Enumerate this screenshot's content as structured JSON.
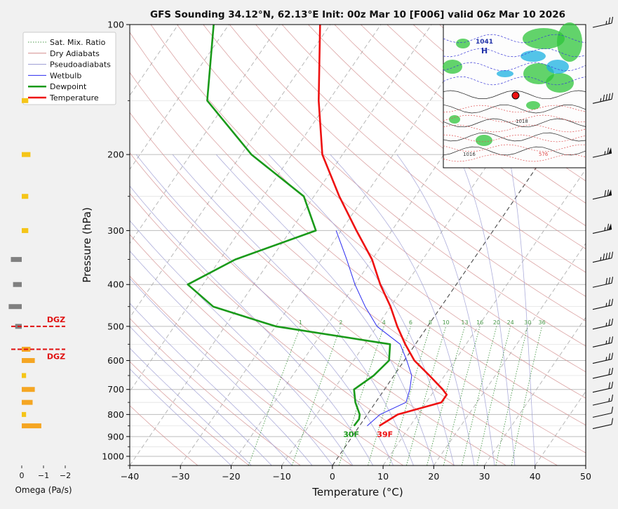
{
  "chart_data": {
    "type": "line",
    "title": "GFS Sounding 34.12°N, 62.13°E Init: 00z Mar 10 [F006] valid 06z Mar 10 2026",
    "xlabel": "Temperature (°C)",
    "ylabel": "Pressure (hPa)",
    "xlim": [
      -40,
      50
    ],
    "ylim": [
      1050,
      100
    ],
    "x_ticks": [
      -40,
      -30,
      -20,
      -10,
      0,
      10,
      20,
      30,
      40,
      50
    ],
    "y_ticks": [
      100,
      200,
      300,
      400,
      500,
      600,
      700,
      800,
      900,
      1000
    ],
    "mixing_ratio_labels": [
      "1",
      "2",
      "4",
      "6",
      "8",
      "10",
      "13",
      "16",
      "20",
      "24",
      "30",
      "36"
    ],
    "legend": [
      {
        "label": "Sat. Mix. Ratio",
        "color": "#4a9a4a",
        "style": "dotted"
      },
      {
        "label": "Dry Adiabats",
        "color": "#d28c8c",
        "style": "solid"
      },
      {
        "label": "Pseudoadiabats",
        "color": "#9a9ad2",
        "style": "solid"
      },
      {
        "label": "Wetbulb",
        "color": "#2a2af0",
        "style": "solid"
      },
      {
        "label": "Dewpoint",
        "color": "#1a9a1a",
        "style": "solid"
      },
      {
        "label": "Temperature",
        "color": "#ee1111",
        "style": "solid"
      }
    ],
    "series": [
      {
        "name": "Temperature",
        "color": "#ee1111",
        "width": 2.6,
        "points": [
          [
            850,
            3.9
          ],
          [
            800,
            6.0
          ],
          [
            750,
            13.0
          ],
          [
            720,
            13.0
          ],
          [
            700,
            11.5
          ],
          [
            650,
            7.0
          ],
          [
            600,
            2.0
          ],
          [
            550,
            -2.0
          ],
          [
            500,
            -6.0
          ],
          [
            450,
            -10.0
          ],
          [
            400,
            -15.0
          ],
          [
            350,
            -20.0
          ],
          [
            300,
            -27.0
          ],
          [
            250,
            -35.0
          ],
          [
            200,
            -44.0
          ],
          [
            150,
            -52.0
          ],
          [
            100,
            -62.0
          ]
        ]
      },
      {
        "name": "Dewpoint",
        "color": "#1a9a1a",
        "width": 2.6,
        "points": [
          [
            850,
            -1.1
          ],
          [
            820,
            -1.0
          ],
          [
            800,
            -1.5
          ],
          [
            750,
            -4.0
          ],
          [
            700,
            -6.0
          ],
          [
            650,
            -4.0
          ],
          [
            600,
            -3.0
          ],
          [
            550,
            -5.0
          ],
          [
            500,
            -30.0
          ],
          [
            450,
            -45.0
          ],
          [
            400,
            -53.0
          ],
          [
            350,
            -47.0
          ],
          [
            300,
            -35.0
          ],
          [
            250,
            -42.0
          ],
          [
            200,
            -58.0
          ],
          [
            150,
            -74.0
          ],
          [
            100,
            -83.0
          ]
        ]
      },
      {
        "name": "Wetbulb",
        "color": "#2a2af0",
        "width": 1.0,
        "points": [
          [
            850,
            1.5
          ],
          [
            800,
            2.5
          ],
          [
            750,
            6.0
          ],
          [
            700,
            5.0
          ],
          [
            650,
            3.5
          ],
          [
            600,
            0.5
          ],
          [
            550,
            -3.0
          ],
          [
            500,
            -10.0
          ],
          [
            450,
            -15.0
          ],
          [
            400,
            -20.0
          ],
          [
            350,
            -25.0
          ],
          [
            300,
            -31.0
          ]
        ]
      }
    ],
    "surface_labels": [
      {
        "text": "30F",
        "color": "#1a9a1a",
        "temp": -1.1,
        "pressure": 850
      },
      {
        "text": "39F",
        "color": "#ee1111",
        "temp": 3.9,
        "pressure": 850
      }
    ],
    "omega_axis": {
      "label": "Omega (Pa/s)",
      "ticks": [
        "0",
        "−1",
        "−2"
      ]
    },
    "dgz_label": "DGZ",
    "dgz_levels": [
      500,
      565
    ],
    "omega_bars": [
      {
        "pressure": 150,
        "value": -0.3,
        "color": "#f5c518"
      },
      {
        "pressure": 200,
        "value": -0.4,
        "color": "#f5c518"
      },
      {
        "pressure": 250,
        "value": -0.3,
        "color": "#f5c518"
      },
      {
        "pressure": 300,
        "value": -0.3,
        "color": "#f5c518"
      },
      {
        "pressure": 350,
        "value": 0.5,
        "color": "#808080"
      },
      {
        "pressure": 400,
        "value": 0.4,
        "color": "#808080"
      },
      {
        "pressure": 450,
        "value": 0.6,
        "color": "#808080"
      },
      {
        "pressure": 500,
        "value": 0.3,
        "color": "#808080"
      },
      {
        "pressure": 565,
        "value": -0.4,
        "color": "#f5a623"
      },
      {
        "pressure": 600,
        "value": -0.6,
        "color": "#f5a623"
      },
      {
        "pressure": 650,
        "value": -0.2,
        "color": "#f5c518"
      },
      {
        "pressure": 700,
        "value": -0.6,
        "color": "#f5a623"
      },
      {
        "pressure": 750,
        "value": -0.5,
        "color": "#f5a623"
      },
      {
        "pressure": 800,
        "value": -0.2,
        "color": "#f5c518"
      },
      {
        "pressure": 850,
        "value": -0.9,
        "color": "#f5a623"
      }
    ],
    "wind_barbs": [
      {
        "pressure": 100,
        "speed_kt": 25
      },
      {
        "pressure": 150,
        "speed_kt": 45
      },
      {
        "pressure": 200,
        "speed_kt": 65
      },
      {
        "pressure": 250,
        "speed_kt": 70
      },
      {
        "pressure": 300,
        "speed_kt": 65
      },
      {
        "pressure": 350,
        "speed_kt": 45
      },
      {
        "pressure": 400,
        "speed_kt": 30
      },
      {
        "pressure": 450,
        "speed_kt": 25
      },
      {
        "pressure": 500,
        "speed_kt": 25
      },
      {
        "pressure": 550,
        "speed_kt": 25
      },
      {
        "pressure": 600,
        "speed_kt": 25
      },
      {
        "pressure": 650,
        "speed_kt": 20
      },
      {
        "pressure": 700,
        "speed_kt": 20
      },
      {
        "pressure": 750,
        "speed_kt": 15
      },
      {
        "pressure": 800,
        "speed_kt": 10
      },
      {
        "pressure": 850,
        "speed_kt": 10
      }
    ],
    "inset_map": {
      "description_labels": [
        "1041",
        "H",
        "1016",
        "1018",
        "576"
      ],
      "station_marker_color": "#ee1111"
    }
  }
}
